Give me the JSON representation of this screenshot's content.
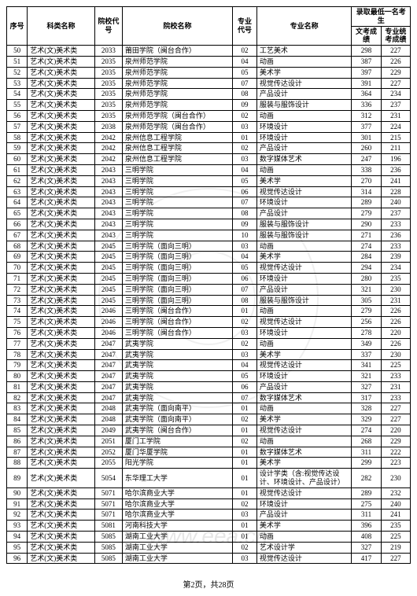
{
  "table": {
    "header": {
      "seq": "序号",
      "category": "科类名称",
      "school_code": "院校代号",
      "school_name": "院校名称",
      "major_code": "专业代号",
      "major_name": "专业名称",
      "lowest_group": "录取最低一名考生",
      "score_wen": "文考成绩",
      "score_pro": "专业统考成绩"
    },
    "rows": [
      {
        "seq": "50",
        "category": "艺术(文)美术类",
        "school_code": "2033",
        "school_name": "莆田学院（闽台合作）",
        "major_code": "02",
        "major_name": "工艺美术",
        "score_wen": "298",
        "score_pro": "227"
      },
      {
        "seq": "51",
        "category": "艺术(文)美术类",
        "school_code": "2035",
        "school_name": "泉州师范学院",
        "major_code": "04",
        "major_name": "动画",
        "score_wen": "387",
        "score_pro": "226"
      },
      {
        "seq": "52",
        "category": "艺术(文)美术类",
        "school_code": "2035",
        "school_name": "泉州师范学院",
        "major_code": "05",
        "major_name": "美术学",
        "score_wen": "397",
        "score_pro": "229"
      },
      {
        "seq": "53",
        "category": "艺术(文)美术类",
        "school_code": "2035",
        "school_name": "泉州师范学院",
        "major_code": "07",
        "major_name": "视觉传达设计",
        "score_wen": "391",
        "score_pro": "227"
      },
      {
        "seq": "54",
        "category": "艺术(文)美术类",
        "school_code": "2035",
        "school_name": "泉州师范学院",
        "major_code": "08",
        "major_name": "产品设计",
        "score_wen": "364",
        "score_pro": "234"
      },
      {
        "seq": "55",
        "category": "艺术(文)美术类",
        "school_code": "2035",
        "school_name": "泉州师范学院",
        "major_code": "09",
        "major_name": "服装与服饰设计",
        "score_wen": "336",
        "score_pro": "237"
      },
      {
        "seq": "56",
        "category": "艺术(文)美术类",
        "school_code": "2035",
        "school_name": "泉州师范学院（闽台合作）",
        "major_code": "02",
        "major_name": "动画",
        "score_wen": "312",
        "score_pro": "231"
      },
      {
        "seq": "57",
        "category": "艺术(文)美术类",
        "school_code": "2038",
        "school_name": "泉州师范学院（闽台合作）",
        "major_code": "03",
        "major_name": "环境设计",
        "score_wen": "377",
        "score_pro": "224"
      },
      {
        "seq": "58",
        "category": "艺术(文)美术类",
        "school_code": "2042",
        "school_name": "泉州信息工程学院",
        "major_code": "01",
        "major_name": "环境设计",
        "score_wen": "301",
        "score_pro": "215"
      },
      {
        "seq": "59",
        "category": "艺术(文)美术类",
        "school_code": "2042",
        "school_name": "泉州信息工程学院",
        "major_code": "02",
        "major_name": "产品设计",
        "score_wen": "260",
        "score_pro": "211"
      },
      {
        "seq": "60",
        "category": "艺术(文)美术类",
        "school_code": "2042",
        "school_name": "泉州信息工程学院",
        "major_code": "03",
        "major_name": "数字媒体艺术",
        "score_wen": "247",
        "score_pro": "196"
      },
      {
        "seq": "61",
        "category": "艺术(文)美术类",
        "school_code": "2043",
        "school_name": "三明学院",
        "major_code": "04",
        "major_name": "动画",
        "score_wen": "338",
        "score_pro": "236"
      },
      {
        "seq": "62",
        "category": "艺术(文)美术类",
        "school_code": "2043",
        "school_name": "三明学院",
        "major_code": "05",
        "major_name": "美术学",
        "score_wen": "270",
        "score_pro": "241"
      },
      {
        "seq": "63",
        "category": "艺术(文)美术类",
        "school_code": "2043",
        "school_name": "三明学院",
        "major_code": "06",
        "major_name": "视觉传达设计",
        "score_wen": "314",
        "score_pro": "228"
      },
      {
        "seq": "64",
        "category": "艺术(文)美术类",
        "school_code": "2043",
        "school_name": "三明学院",
        "major_code": "07",
        "major_name": "环境设计",
        "score_wen": "289",
        "score_pro": "240"
      },
      {
        "seq": "65",
        "category": "艺术(文)美术类",
        "school_code": "2043",
        "school_name": "三明学院",
        "major_code": "08",
        "major_name": "产品设计",
        "score_wen": "279",
        "score_pro": "237"
      },
      {
        "seq": "66",
        "category": "艺术(文)美术类",
        "school_code": "2043",
        "school_name": "三明学院",
        "major_code": "09",
        "major_name": "服装与服饰设计",
        "score_wen": "290",
        "score_pro": "233"
      },
      {
        "seq": "67",
        "category": "艺术(文)美术类",
        "school_code": "2043",
        "school_name": "三明学院",
        "major_code": "10",
        "major_name": "服装与服饰设计",
        "score_wen": "271",
        "score_pro": "236"
      },
      {
        "seq": "68",
        "category": "艺术(文)美术类",
        "school_code": "2045",
        "school_name": "三明学院（面向三明）",
        "major_code": "03",
        "major_name": "动画",
        "score_wen": "274",
        "score_pro": "233"
      },
      {
        "seq": "69",
        "category": "艺术(文)美术类",
        "school_code": "2045",
        "school_name": "三明学院（面向三明）",
        "major_code": "04",
        "major_name": "美术学",
        "score_wen": "284",
        "score_pro": "239"
      },
      {
        "seq": "70",
        "category": "艺术(文)美术类",
        "school_code": "2045",
        "school_name": "三明学院（面向三明）",
        "major_code": "05",
        "major_name": "视觉传达设计",
        "score_wen": "294",
        "score_pro": "234"
      },
      {
        "seq": "71",
        "category": "艺术(文)美术类",
        "school_code": "2045",
        "school_name": "三明学院（面向三明）",
        "major_code": "06",
        "major_name": "环境设计",
        "score_wen": "280",
        "score_pro": "235"
      },
      {
        "seq": "72",
        "category": "艺术(文)美术类",
        "school_code": "2045",
        "school_name": "三明学院（面向三明）",
        "major_code": "07",
        "major_name": "产品设计",
        "score_wen": "321",
        "score_pro": "230"
      },
      {
        "seq": "73",
        "category": "艺术(文)美术类",
        "school_code": "2045",
        "school_name": "三明学院（面向三明）",
        "major_code": "08",
        "major_name": "服装与服饰设计",
        "score_wen": "305",
        "score_pro": "231"
      },
      {
        "seq": "74",
        "category": "艺术(文)美术类",
        "school_code": "2046",
        "school_name": "三明学院（闽台合作）",
        "major_code": "01",
        "major_name": "动画",
        "score_wen": "279",
        "score_pro": "226"
      },
      {
        "seq": "75",
        "category": "艺术(文)美术类",
        "school_code": "2046",
        "school_name": "三明学院（闽台合作）",
        "major_code": "02",
        "major_name": "视觉传达设计",
        "score_wen": "256",
        "score_pro": "226"
      },
      {
        "seq": "76",
        "category": "艺术(文)美术类",
        "school_code": "2046",
        "school_name": "三明学院（闽台合作）",
        "major_code": "03",
        "major_name": "环境设计",
        "score_wen": "278",
        "score_pro": "220"
      },
      {
        "seq": "77",
        "category": "艺术(文)美术类",
        "school_code": "2047",
        "school_name": "武夷学院",
        "major_code": "02",
        "major_name": "动画",
        "score_wen": "349",
        "score_pro": "226"
      },
      {
        "seq": "78",
        "category": "艺术(文)美术类",
        "school_code": "2047",
        "school_name": "武夷学院",
        "major_code": "03",
        "major_name": "美术学",
        "score_wen": "337",
        "score_pro": "230"
      },
      {
        "seq": "79",
        "category": "艺术(文)美术类",
        "school_code": "2047",
        "school_name": "武夷学院",
        "major_code": "04",
        "major_name": "视觉传达设计",
        "score_wen": "341",
        "score_pro": "225"
      },
      {
        "seq": "80",
        "category": "艺术(文)美术类",
        "school_code": "2047",
        "school_name": "武夷学院",
        "major_code": "05",
        "major_name": "环境设计",
        "score_wen": "321",
        "score_pro": "233"
      },
      {
        "seq": "81",
        "category": "艺术(文)美术类",
        "school_code": "2047",
        "school_name": "武夷学院",
        "major_code": "06",
        "major_name": "产品设计",
        "score_wen": "327",
        "score_pro": "231"
      },
      {
        "seq": "82",
        "category": "艺术(文)美术类",
        "school_code": "2047",
        "school_name": "武夷学院",
        "major_code": "07",
        "major_name": "数字媒体艺术",
        "score_wen": "317",
        "score_pro": "233"
      },
      {
        "seq": "83",
        "category": "艺术(文)美术类",
        "school_code": "2048",
        "school_name": "武夷学院（面向南平）",
        "major_code": "01",
        "major_name": "动画",
        "score_wen": "328",
        "score_pro": "227"
      },
      {
        "seq": "84",
        "category": "艺术(文)美术类",
        "school_code": "2048",
        "school_name": "武夷学院（面向南平）",
        "major_code": "02",
        "major_name": "美术学",
        "score_wen": "329",
        "score_pro": "227"
      },
      {
        "seq": "85",
        "category": "艺术(文)美术类",
        "school_code": "2049",
        "school_name": "武夷学院（闽台合作）",
        "major_code": "01",
        "major_name": "视觉传达设计",
        "score_wen": "274",
        "score_pro": "220"
      },
      {
        "seq": "86",
        "category": "艺术(文)美术类",
        "school_code": "2051",
        "school_name": "厦门工学院",
        "major_code": "02",
        "major_name": "动画",
        "score_wen": "268",
        "score_pro": "229"
      },
      {
        "seq": "87",
        "category": "艺术(文)美术类",
        "school_code": "2052",
        "school_name": "厦门华厦学院",
        "major_code": "01",
        "major_name": "数字媒体艺术",
        "score_wen": "311",
        "score_pro": "222"
      },
      {
        "seq": "88",
        "category": "艺术(文)美术类",
        "school_code": "2055",
        "school_name": "阳光学院",
        "major_code": "01",
        "major_name": "美术学",
        "score_wen": "299",
        "score_pro": "223"
      },
      {
        "seq": "89",
        "category": "艺术(文)美术类",
        "school_code": "5054",
        "school_name": "东华理工大学",
        "major_code": "01",
        "major_name": "设计学类（含:视觉传达设计、环境设计、产品设计）",
        "score_wen": "282",
        "score_pro": "230"
      },
      {
        "seq": "90",
        "category": "艺术(文)美术类",
        "school_code": "5071",
        "school_name": "哈尔滨商业大学",
        "major_code": "01",
        "major_name": "视觉传达设计",
        "score_wen": "289",
        "score_pro": "232"
      },
      {
        "seq": "91",
        "category": "艺术(文)美术类",
        "school_code": "5071",
        "school_name": "哈尔滨商业大学",
        "major_code": "02",
        "major_name": "环境设计",
        "score_wen": "275",
        "score_pro": "240"
      },
      {
        "seq": "92",
        "category": "艺术(文)美术类",
        "school_code": "5071",
        "school_name": "哈尔滨商业大学",
        "major_code": "03",
        "major_name": "产品设计",
        "score_wen": "311",
        "score_pro": "241"
      },
      {
        "seq": "93",
        "category": "艺术(文)美术类",
        "school_code": "5081",
        "school_name": "河南科技大学",
        "major_code": "01",
        "major_name": "美术学",
        "score_wen": "396",
        "score_pro": "235"
      },
      {
        "seq": "94",
        "category": "艺术(文)美术类",
        "school_code": "5085",
        "school_name": "湖南工业大学",
        "major_code": "01",
        "major_name": "动画",
        "score_wen": "408",
        "score_pro": "225"
      },
      {
        "seq": "95",
        "category": "艺术(文)美术类",
        "school_code": "5085",
        "school_name": "湖南工业大学",
        "major_code": "02",
        "major_name": "艺术设计学",
        "score_wen": "327",
        "score_pro": "219"
      },
      {
        "seq": "96",
        "category": "艺术(文)美术类",
        "school_code": "5085",
        "school_name": "湖南工业大学",
        "major_code": "03",
        "major_name": "视觉传达设计",
        "score_wen": "417",
        "score_pro": "227"
      }
    ]
  },
  "footer": {
    "page_info": "第2页，共28页"
  },
  "watermark": {
    "text": "www.eea.cn"
  },
  "styling": {
    "border_color": "#000000",
    "background_color": "#ffffff",
    "font_size_table": 9,
    "watermark_color": "#cfcfcf"
  }
}
